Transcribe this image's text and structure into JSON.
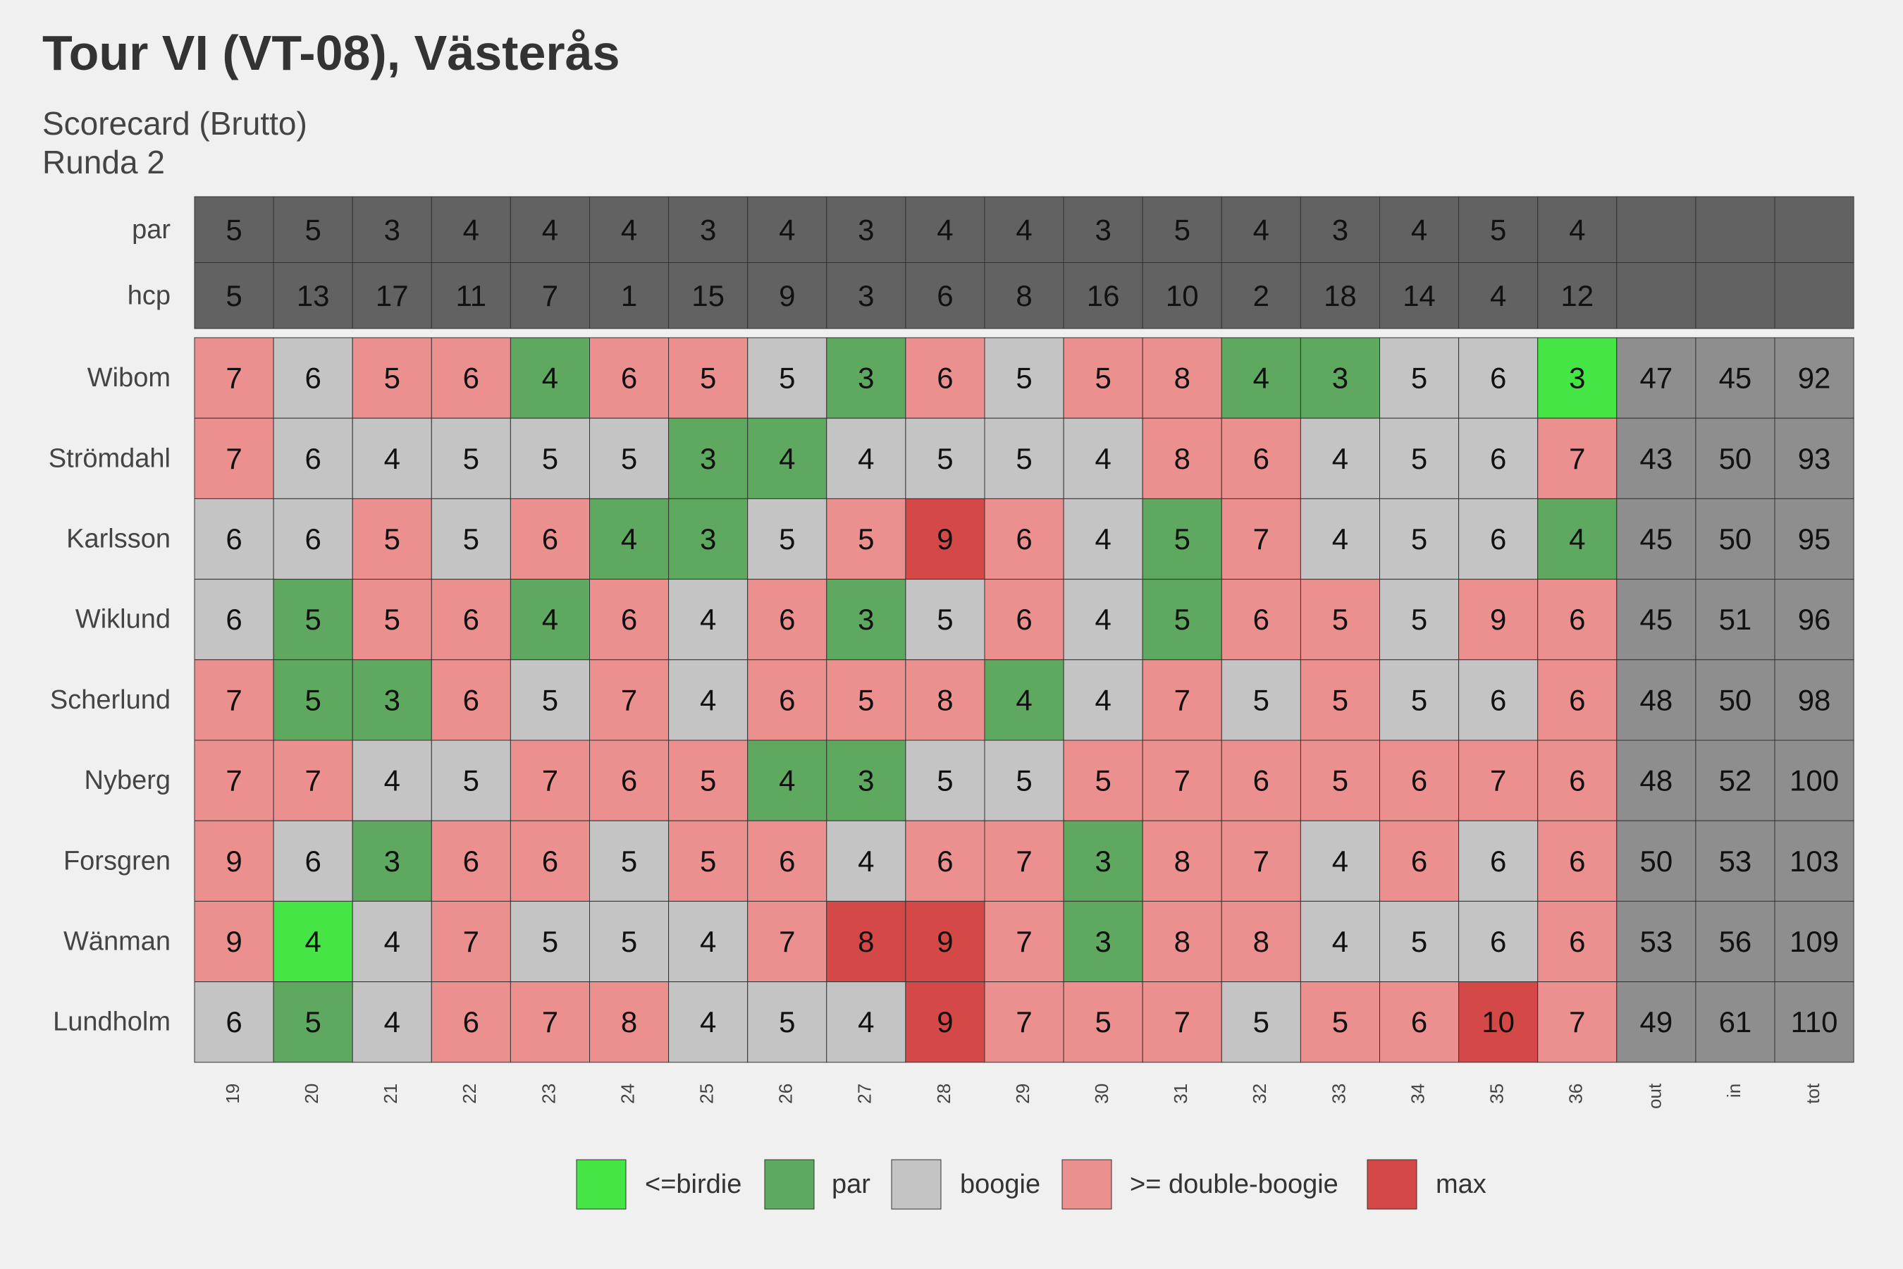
{
  "chart_data": {
    "type": "heatmap",
    "title": "Tour VI (VT-08), Västerås",
    "subtitle_lines": [
      "Scorecard (Brutto)",
      "Runda 2"
    ],
    "holes": [
      "19",
      "20",
      "21",
      "22",
      "23",
      "24",
      "25",
      "26",
      "27",
      "28",
      "29",
      "30",
      "31",
      "32",
      "33",
      "34",
      "35",
      "36"
    ],
    "summary_columns": [
      "out",
      "in",
      "tot"
    ],
    "par": [
      5,
      5,
      3,
      4,
      4,
      4,
      3,
      4,
      3,
      4,
      4,
      3,
      5,
      4,
      3,
      4,
      5,
      4
    ],
    "hcp": [
      5,
      13,
      17,
      11,
      7,
      1,
      15,
      9,
      3,
      6,
      8,
      16,
      10,
      2,
      18,
      14,
      4,
      12
    ],
    "header_row_labels": [
      "par",
      "hcp"
    ],
    "players": [
      {
        "name": "Wibom",
        "scores": [
          7,
          6,
          5,
          6,
          4,
          6,
          5,
          5,
          3,
          6,
          5,
          5,
          8,
          4,
          3,
          5,
          6,
          3
        ],
        "out": 47,
        "in": 45,
        "tot": 92
      },
      {
        "name": "Strömdahl",
        "scores": [
          7,
          6,
          4,
          5,
          5,
          5,
          3,
          4,
          4,
          5,
          5,
          4,
          8,
          6,
          4,
          5,
          6,
          7
        ],
        "out": 43,
        "in": 50,
        "tot": 93
      },
      {
        "name": "Karlsson",
        "scores": [
          6,
          6,
          5,
          5,
          6,
          4,
          3,
          5,
          5,
          9,
          6,
          4,
          5,
          7,
          4,
          5,
          6,
          4
        ],
        "out": 45,
        "in": 50,
        "tot": 95
      },
      {
        "name": "Wiklund",
        "scores": [
          6,
          5,
          5,
          6,
          4,
          6,
          4,
          6,
          3,
          5,
          6,
          4,
          5,
          6,
          5,
          5,
          9,
          6
        ],
        "out": 45,
        "in": 51,
        "tot": 96
      },
      {
        "name": "Scherlund",
        "scores": [
          7,
          5,
          3,
          6,
          5,
          7,
          4,
          6,
          5,
          8,
          4,
          4,
          7,
          5,
          5,
          5,
          6,
          6
        ],
        "out": 48,
        "in": 50,
        "tot": 98
      },
      {
        "name": "Nyberg",
        "scores": [
          7,
          7,
          4,
          5,
          7,
          6,
          5,
          4,
          3,
          5,
          5,
          5,
          7,
          6,
          5,
          6,
          7,
          6
        ],
        "out": 48,
        "in": 52,
        "tot": 100
      },
      {
        "name": "Forsgren",
        "scores": [
          9,
          6,
          3,
          6,
          6,
          5,
          5,
          6,
          4,
          6,
          7,
          3,
          8,
          7,
          4,
          6,
          6,
          6
        ],
        "out": 50,
        "in": 53,
        "tot": 103
      },
      {
        "name": "Wänman",
        "scores": [
          9,
          4,
          4,
          7,
          5,
          5,
          4,
          7,
          8,
          9,
          7,
          3,
          8,
          8,
          4,
          5,
          6,
          6
        ],
        "out": 53,
        "in": 56,
        "tot": 109
      },
      {
        "name": "Lundholm",
        "scores": [
          6,
          5,
          4,
          6,
          7,
          8,
          4,
          5,
          4,
          9,
          7,
          5,
          7,
          5,
          5,
          6,
          10,
          7
        ],
        "out": 49,
        "in": 61,
        "tot": 110
      }
    ],
    "max_cells": [
      [
        2,
        9
      ],
      [
        7,
        8
      ],
      [
        7,
        9
      ],
      [
        8,
        9
      ],
      [
        8,
        16
      ]
    ],
    "legend": [
      {
        "key": "birdie",
        "label": "<=birdie",
        "color": "#44e544"
      },
      {
        "key": "par",
        "label": "par",
        "color": "#5fa85f"
      },
      {
        "key": "bogey",
        "label": "boogie",
        "color": "#c4c4c4"
      },
      {
        "key": "double",
        "label": ">= double-boogie",
        "color": "#ec8f8f"
      },
      {
        "key": "max",
        "label": "max",
        "color": "#d44848"
      }
    ],
    "colors": {
      "header_bg": "#626262",
      "summary_bg": "#8e8e8e",
      "grid_line": "#333333",
      "background": "#f0f0f0"
    }
  }
}
